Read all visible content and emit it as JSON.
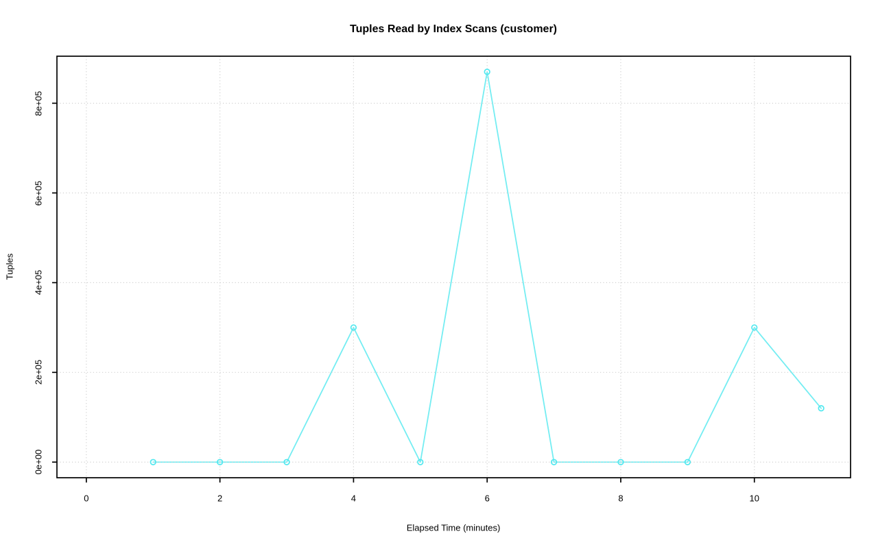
{
  "chart_data": {
    "type": "line",
    "title": "Tuples Read by Index Scans (customer)",
    "xlabel": "Elapsed Time (minutes)",
    "ylabel": "Tuples",
    "x": [
      1,
      2,
      3,
      4,
      5,
      6,
      7,
      8,
      9,
      10,
      11
    ],
    "values": [
      0,
      0,
      0,
      300000,
      0,
      870000,
      0,
      0,
      0,
      300000,
      120000
    ],
    "x_ticks": [
      0,
      2,
      4,
      6,
      8,
      10
    ],
    "x_tick_labels": [
      "0",
      "2",
      "4",
      "6",
      "8",
      "10"
    ],
    "y_ticks": [
      0,
      200000,
      400000,
      600000,
      800000
    ],
    "y_tick_labels": [
      "0e+00",
      "2e+05",
      "4e+05",
      "6e+05",
      "8e+05"
    ],
    "xlim": [
      -0.44,
      11.44
    ],
    "ylim": [
      -34800,
      904800
    ],
    "grid": "dotted lightgray at tick positions, drawn over data line",
    "legend_position": "none",
    "marker": "open-circle",
    "colors": {
      "line": "#74EDF2",
      "marker": "#52E8EF",
      "grid": "#D0D0D0",
      "axis": "#000000",
      "text": "#000000",
      "background": "#FFFFFF"
    }
  }
}
